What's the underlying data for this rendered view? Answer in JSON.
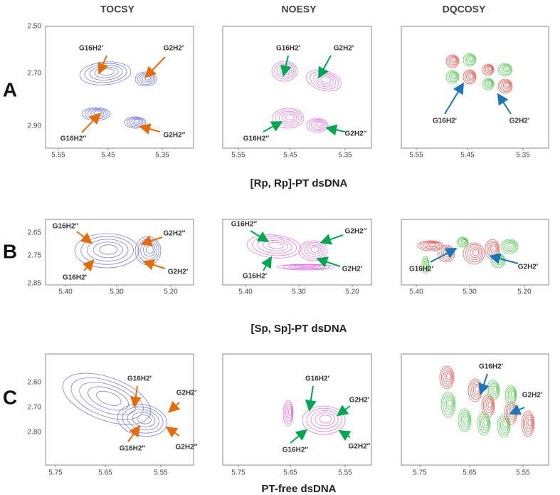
{
  "columns": [
    "TOCSY",
    "NOESY",
    "DQCOSY"
  ],
  "rows": [
    {
      "letter": "A",
      "caption": "[Rp, Rp]-PT dsDNA",
      "y_ticks": [
        "2.50",
        "2.70",
        "2.90"
      ],
      "x_ticks": [
        "5.55",
        "5.45",
        "5.35"
      ],
      "panels": [
        {
          "labels": [
            "G16H2′",
            "G2H2′",
            "G16H2″",
            "G2H2″"
          ]
        },
        {
          "labels": [
            "G16H2′",
            "G2H2′",
            "G16H2″",
            "G2H2″"
          ]
        },
        {
          "labels": [
            "G16H2′",
            "G2H2′"
          ]
        }
      ]
    },
    {
      "letter": "B",
      "caption": "[Sp, Sp]-PT dsDNA",
      "y_ticks": [
        "2.65",
        "2.75",
        "2.85"
      ],
      "x_ticks": [
        "5.40",
        "5.30",
        "5.20"
      ],
      "panels": [
        {
          "labels": [
            "G16H2″",
            "G2H2″",
            "G16H2′",
            "G2H2′"
          ]
        },
        {
          "labels": [
            "G16H2″",
            "G2H2″",
            "G16H2′",
            "G2H2′"
          ]
        },
        {
          "labels": [
            "G16H2′",
            "G2H2′"
          ]
        }
      ]
    },
    {
      "letter": "C",
      "caption": "PT-free dsDNA",
      "y_ticks": [
        "2.60",
        "2.70",
        "2.80"
      ],
      "x_ticks": [
        "5.75",
        "5.65",
        "5.55"
      ],
      "panels": [
        {
          "labels": [
            "G16H2′",
            "G2H2′",
            "G16H2″",
            "G2H2″"
          ]
        },
        {
          "labels": [
            "G16H2′",
            "G2H2′",
            "G16H2″",
            "G2H2″"
          ]
        },
        {
          "labels": [
            "G16H2′",
            "G2H2′"
          ]
        }
      ]
    }
  ]
}
